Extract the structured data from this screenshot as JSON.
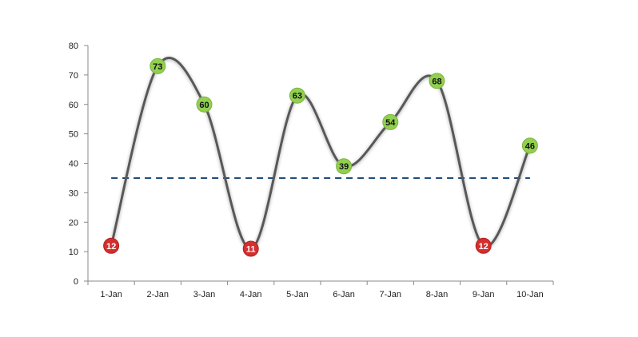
{
  "chart_data": {
    "type": "line",
    "title": "",
    "xlabel": "",
    "ylabel": "",
    "categories": [
      "1-Jan",
      "2-Jan",
      "3-Jan",
      "4-Jan",
      "5-Jan",
      "6-Jan",
      "7-Jan",
      "8-Jan",
      "9-Jan",
      "10-Jan"
    ],
    "values": [
      12,
      73,
      60,
      11,
      63,
      39,
      54,
      68,
      12,
      46
    ],
    "point_labels": [
      "12",
      "73",
      "60",
      "11",
      "63",
      "39",
      "54",
      "68",
      "12",
      "46"
    ],
    "ylim": [
      0,
      80
    ],
    "yticks": [
      "0",
      "10",
      "20",
      "30",
      "40",
      "50",
      "60",
      "70",
      "80"
    ],
    "threshold": 35,
    "grid": false,
    "legend": "none",
    "smooth": true,
    "colors": {
      "line": "#595959",
      "threshold": "#1F4E79",
      "above": "#92D050",
      "below": "#D32F2F",
      "above_text": "#111111",
      "below_text": "#ffffff",
      "axis": "#888888"
    }
  }
}
